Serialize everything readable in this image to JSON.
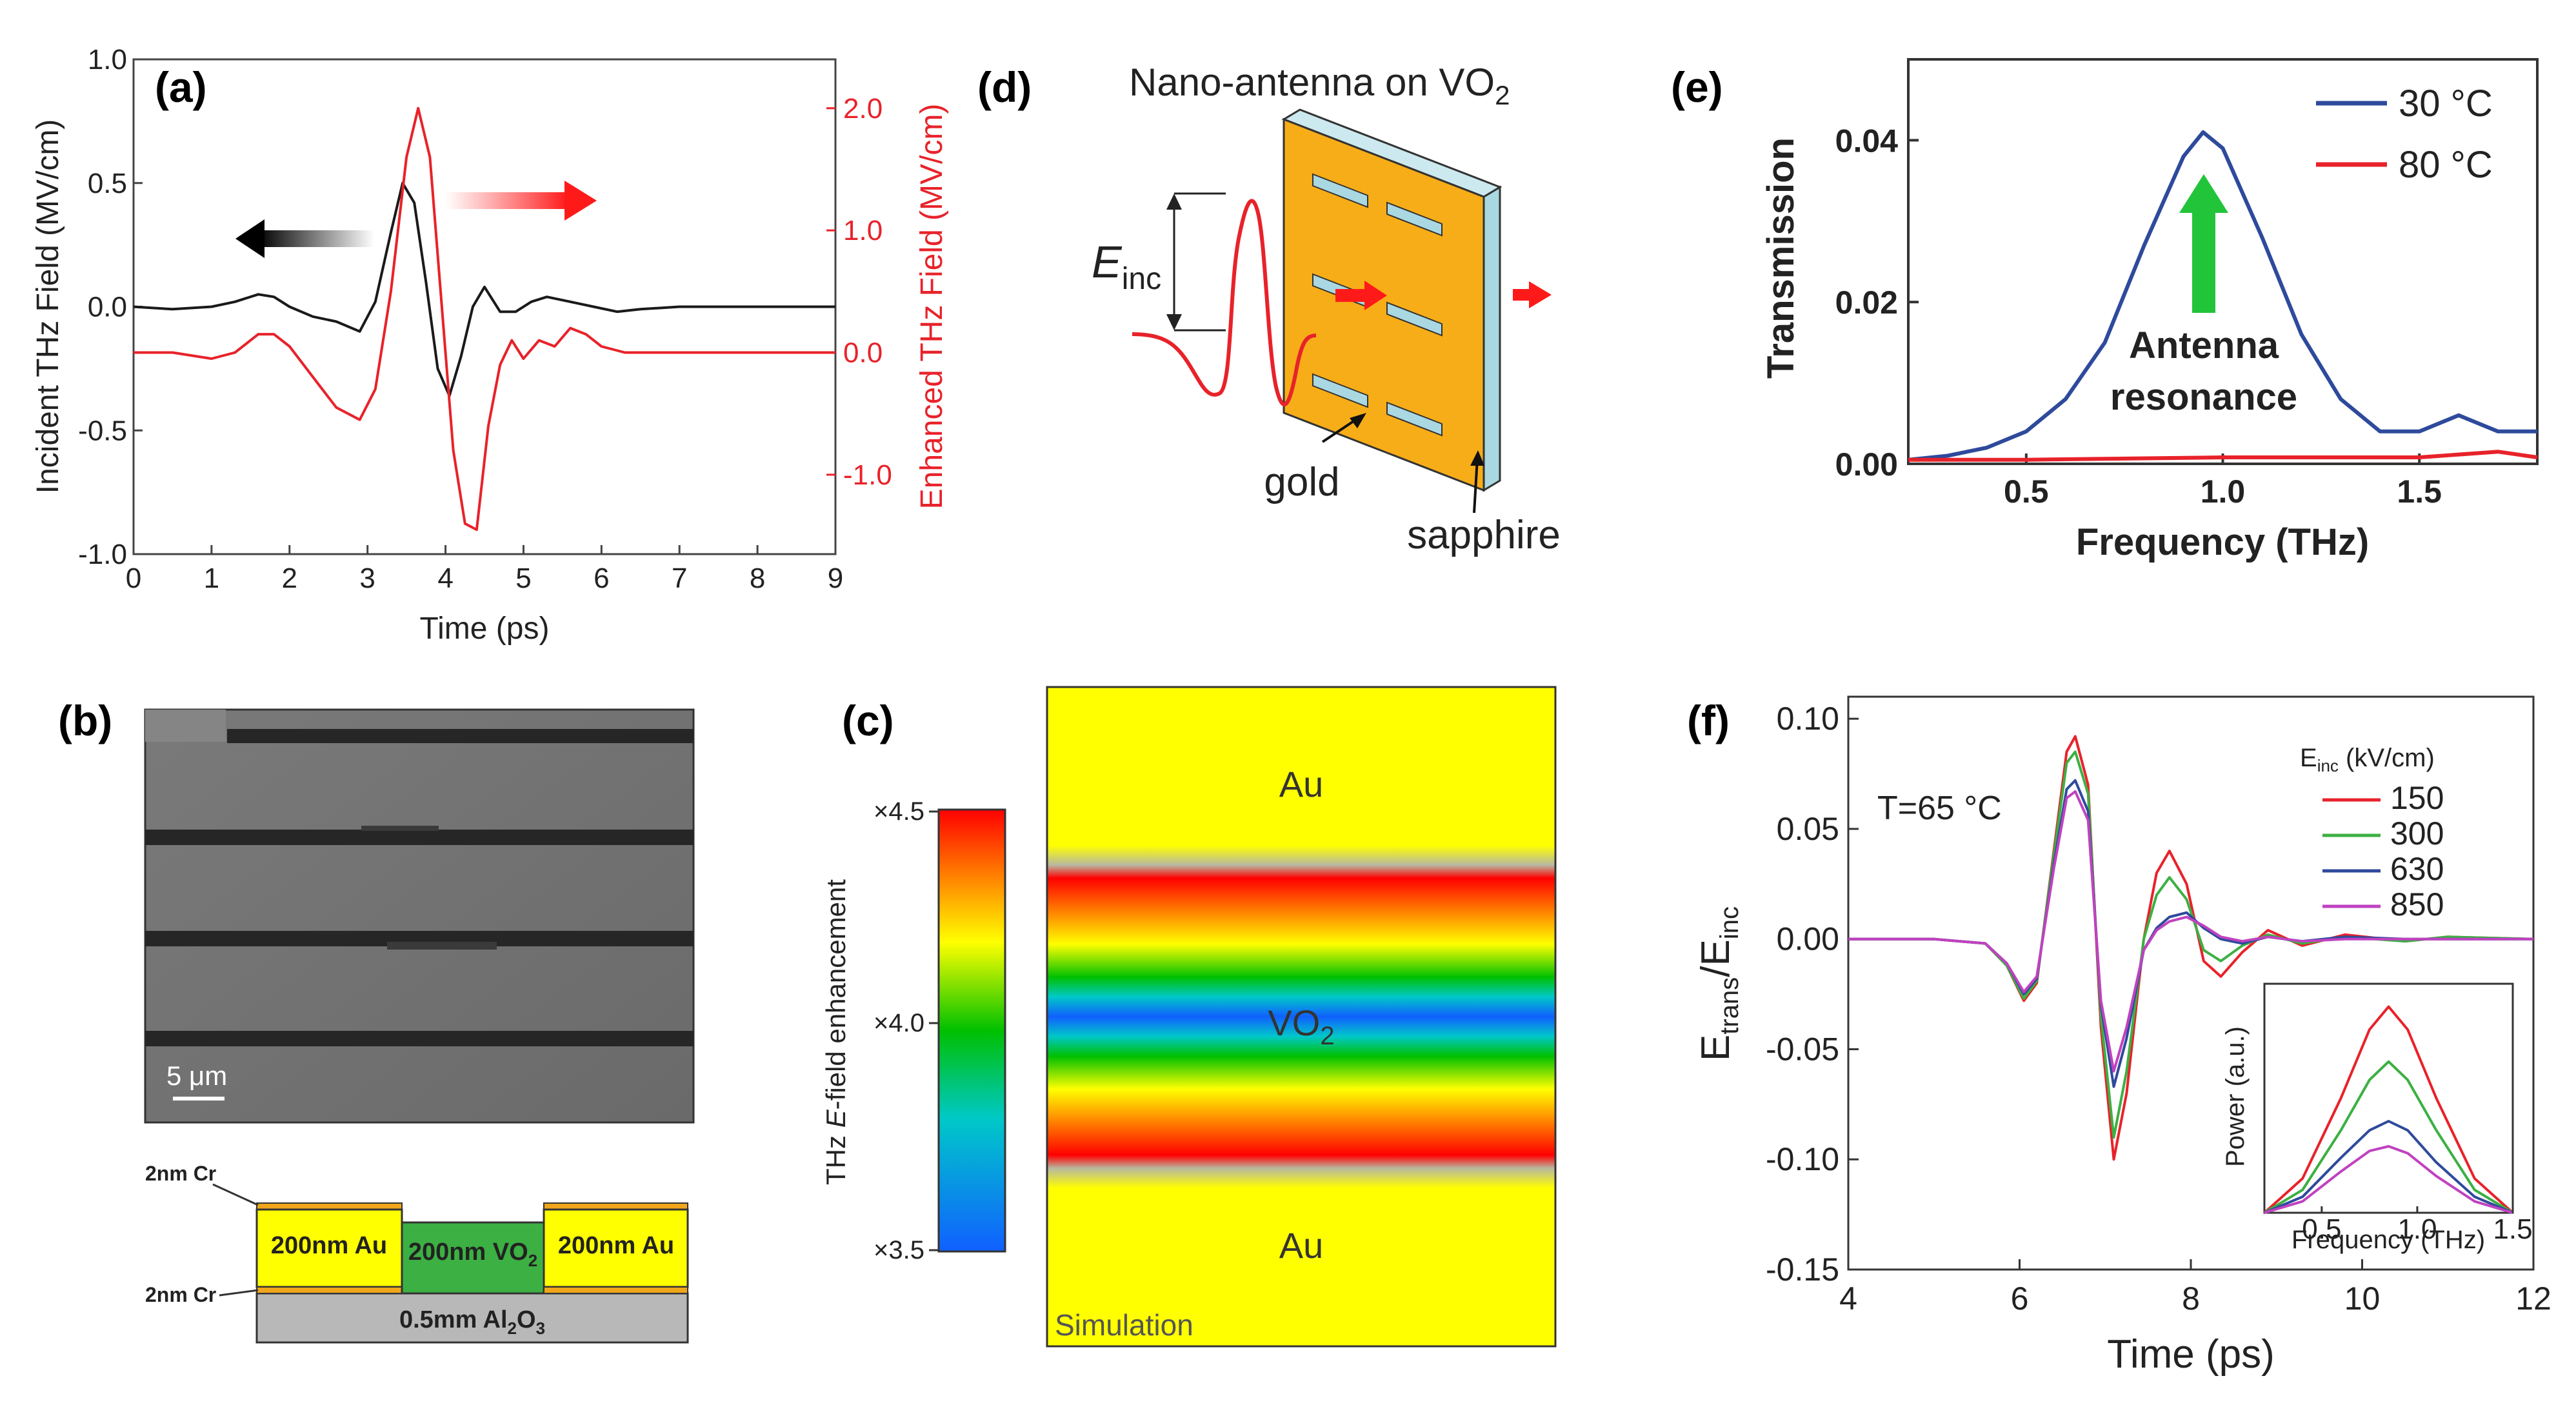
{
  "panels": {
    "a": {
      "label": "(a)",
      "chart_data": {
        "type": "line",
        "xlabel": "Time (ps)",
        "ylabel_left": "Incident THz Field (MV/cm)",
        "ylabel_right": "Enhanced THz Field (MV/cm)",
        "xlim": [
          0,
          9
        ],
        "ylim_left": [
          -1.0,
          1.0
        ],
        "ylim_right": [
          -1.65,
          2.4
        ],
        "xticks": [
          "0",
          "1",
          "2",
          "3",
          "4",
          "5",
          "6",
          "7",
          "8",
          "9"
        ],
        "yticks_left": [
          "1.0",
          "0.5",
          "0.0",
          "-0.5",
          "-1.0"
        ],
        "yticks_right": [
          "2.0",
          "1.0",
          "0.0",
          "-1.0"
        ],
        "series": [
          {
            "name": "Incident",
            "axis": "left",
            "color": "#1a1a1a",
            "x": [
              0,
              0.5,
              1.0,
              1.3,
              1.6,
              1.8,
              2.0,
              2.3,
              2.6,
              2.9,
              3.1,
              3.3,
              3.45,
              3.6,
              3.75,
              3.9,
              4.05,
              4.2,
              4.35,
              4.5,
              4.7,
              4.9,
              5.1,
              5.3,
              5.6,
              5.9,
              6.2,
              6.5,
              7,
              7.5,
              8,
              8.5,
              9
            ],
            "y": [
              0.0,
              -0.01,
              0.0,
              0.02,
              0.05,
              0.04,
              0.0,
              -0.04,
              -0.06,
              -0.1,
              0.02,
              0.3,
              0.5,
              0.42,
              0.1,
              -0.25,
              -0.36,
              -0.2,
              0.0,
              0.08,
              -0.02,
              -0.02,
              0.02,
              0.04,
              0.02,
              0.0,
              -0.02,
              -0.01,
              0.0,
              0.0,
              0.0,
              0.0,
              0.0
            ]
          },
          {
            "name": "Enhanced",
            "axis": "right",
            "color": "#e8222a",
            "x": [
              0,
              0.5,
              1.0,
              1.3,
              1.6,
              1.8,
              2.0,
              2.3,
              2.6,
              2.9,
              3.1,
              3.3,
              3.5,
              3.65,
              3.8,
              3.95,
              4.1,
              4.25,
              4.4,
              4.55,
              4.7,
              4.85,
              5.0,
              5.2,
              5.4,
              5.6,
              5.8,
              6.0,
              6.3,
              6.6,
              7,
              7.5,
              8,
              8.5,
              9
            ],
            "y": [
              0.0,
              0.0,
              -0.05,
              0.0,
              0.15,
              0.15,
              0.05,
              -0.2,
              -0.45,
              -0.55,
              -0.3,
              0.5,
              1.6,
              2.0,
              1.6,
              0.4,
              -0.8,
              -1.4,
              -1.45,
              -0.6,
              -0.1,
              0.1,
              -0.05,
              0.1,
              0.05,
              0.2,
              0.15,
              0.05,
              0.0,
              0.0,
              0.0,
              0.0,
              0.0,
              0.0,
              0.0
            ]
          }
        ]
      }
    },
    "d": {
      "label": "(d)",
      "title_main": "Nano-antenna on VO",
      "title_sub": "2",
      "e_label": "E",
      "e_sub": "inc",
      "gold_label": "gold",
      "sapphire_label": "sapphire"
    },
    "e": {
      "label": "(e)",
      "annotation_line1": "Antenna",
      "annotation_line2": "resonance",
      "chart_data": {
        "type": "line",
        "xlabel": "Frequency (THz)",
        "ylabel": "Transmission",
        "xlim": [
          0.2,
          1.8
        ],
        "ylim": [
          0.0,
          0.05
        ],
        "xticks": [
          "0.5",
          "1.0",
          "1.5"
        ],
        "yticks": [
          "0.04",
          "0.02",
          "0.00"
        ],
        "legend": "top-right",
        "series": [
          {
            "name": "30 °C",
            "color": "#2e4a9c",
            "x": [
              0.2,
              0.3,
              0.4,
              0.5,
              0.6,
              0.7,
              0.8,
              0.9,
              0.95,
              1.0,
              1.1,
              1.2,
              1.3,
              1.4,
              1.5,
              1.6,
              1.7,
              1.8
            ],
            "y": [
              0.0005,
              0.001,
              0.002,
              0.004,
              0.008,
              0.015,
              0.027,
              0.038,
              0.041,
              0.039,
              0.028,
              0.016,
              0.008,
              0.004,
              0.004,
              0.006,
              0.004,
              0.004
            ]
          },
          {
            "name": "80 °C",
            "color": "#e8222a",
            "x": [
              0.2,
              0.5,
              1.0,
              1.5,
              1.7,
              1.8
            ],
            "y": [
              0.0005,
              0.0005,
              0.0008,
              0.0008,
              0.0015,
              0.0008
            ]
          }
        ]
      }
    },
    "b": {
      "label": "(b)",
      "scale_bar": "5 μm",
      "layers": {
        "cr_top": "2nm Cr",
        "cr_bottom": "2nm Cr",
        "au_left": "200nm Au",
        "vo2_main": "200nm VO",
        "vo2_sub": "2",
        "au_right": "200nm Au",
        "substrate_main": "0.5mm Al",
        "substrate_sub": "2",
        "substrate_o": "O",
        "substrate_sub2": "3"
      }
    },
    "c": {
      "label": "(c)",
      "colorbar_label_pre": "THz ",
      "colorbar_label_italic": "E",
      "colorbar_label_post": "-field enhancement",
      "colorbar_ticks": [
        "×4.5",
        "×4.0",
        "×3.5"
      ],
      "au_top": "Au",
      "vo2_main": "VO",
      "vo2_sub": "2",
      "au_bottom": "Au",
      "simulation": "Simulation"
    },
    "f": {
      "label": "(f)",
      "temperature_text": "T=65 °C",
      "legend_title": "E",
      "legend_title_sub": "inc",
      "legend_title_post": " (kV/cm)",
      "ylabel_main": "E",
      "ylabel_sub1": "trans",
      "ylabel_slash": "/E",
      "ylabel_sub2": "inc",
      "chart_data": {
        "type": "line",
        "xlabel": "Time (ps)",
        "xlim": [
          4,
          12
        ],
        "ylim": [
          -0.15,
          0.11
        ],
        "xticks": [
          "4",
          "6",
          "8",
          "10",
          "12"
        ],
        "yticks": [
          "0.10",
          "0.05",
          "0.00",
          "-0.05",
          "-0.10",
          "-0.15"
        ],
        "series": [
          {
            "name": "150",
            "color": "#e8222a",
            "x": [
              4,
              5,
              5.6,
              5.85,
              6.05,
              6.2,
              6.4,
              6.55,
              6.65,
              6.8,
              6.95,
              7.1,
              7.25,
              7.45,
              7.6,
              7.75,
              7.95,
              8.15,
              8.35,
              8.6,
              8.9,
              9.3,
              9.8,
              10.5,
              11,
              12
            ],
            "y": [
              0,
              0,
              -0.002,
              -0.012,
              -0.028,
              -0.02,
              0.04,
              0.085,
              0.092,
              0.07,
              -0.04,
              -0.1,
              -0.07,
              0.0,
              0.03,
              0.04,
              0.025,
              -0.01,
              -0.017,
              -0.006,
              0.004,
              -0.003,
              0.002,
              -0.001,
              0.001,
              0
            ]
          },
          {
            "name": "300",
            "color": "#3cb043",
            "x": [
              4,
              5,
              5.6,
              5.85,
              6.05,
              6.2,
              6.4,
              6.55,
              6.65,
              6.8,
              6.95,
              7.1,
              7.25,
              7.45,
              7.6,
              7.75,
              7.95,
              8.15,
              8.35,
              8.6,
              8.9,
              9.3,
              9.8,
              10.5,
              11,
              12
            ],
            "y": [
              0,
              0,
              -0.002,
              -0.012,
              -0.027,
              -0.019,
              0.038,
              0.08,
              0.085,
              0.066,
              -0.035,
              -0.09,
              -0.06,
              0.0,
              0.02,
              0.028,
              0.018,
              -0.005,
              -0.01,
              -0.003,
              0.002,
              -0.002,
              0.001,
              -0.001,
              0.001,
              0
            ]
          },
          {
            "name": "630",
            "color": "#2e4a9c",
            "x": [
              4,
              5,
              5.6,
              5.85,
              6.05,
              6.2,
              6.4,
              6.55,
              6.65,
              6.8,
              6.95,
              7.1,
              7.25,
              7.45,
              7.6,
              7.75,
              7.95,
              8.15,
              8.35,
              8.6,
              8.9,
              9.3,
              9.8,
              10.5,
              11,
              12
            ],
            "y": [
              0,
              0,
              -0.002,
              -0.011,
              -0.025,
              -0.018,
              0.034,
              0.068,
              0.072,
              0.058,
              -0.03,
              -0.067,
              -0.045,
              -0.005,
              0.005,
              0.01,
              0.012,
              0.005,
              0.0,
              -0.002,
              0.001,
              -0.001,
              0.001,
              0,
              0,
              0
            ]
          },
          {
            "name": "850",
            "color": "#c042c0",
            "x": [
              4,
              5,
              5.6,
              5.85,
              6.05,
              6.2,
              6.4,
              6.55,
              6.65,
              6.8,
              6.95,
              7.1,
              7.25,
              7.45,
              7.6,
              7.75,
              7.95,
              8.15,
              8.35,
              8.6,
              8.9,
              9.3,
              9.8,
              10.5,
              11,
              12
            ],
            "y": [
              0,
              0,
              -0.002,
              -0.011,
              -0.024,
              -0.017,
              0.032,
              0.064,
              0.067,
              0.054,
              -0.028,
              -0.06,
              -0.04,
              -0.005,
              0.004,
              0.008,
              0.01,
              0.006,
              0.001,
              -0.001,
              0.001,
              -0.001,
              0,
              0,
              0,
              0
            ]
          }
        ],
        "inset": {
          "type": "line",
          "xlabel": "Frequency (THz)",
          "ylabel": "Power (a.u.)",
          "xlim": [
            0.2,
            1.5
          ],
          "ylim": [
            0,
            1.0
          ],
          "xticks": [
            "0.5",
            "1.0",
            "1.5"
          ],
          "series": [
            {
              "name": "150",
              "color": "#e8222a",
              "x": [
                0.2,
                0.4,
                0.6,
                0.75,
                0.85,
                0.95,
                1.1,
                1.3,
                1.5
              ],
              "y": [
                0.0,
                0.15,
                0.5,
                0.8,
                0.9,
                0.8,
                0.5,
                0.15,
                0.0
              ]
            },
            {
              "name": "300",
              "color": "#3cb043",
              "x": [
                0.2,
                0.4,
                0.6,
                0.75,
                0.85,
                0.95,
                1.1,
                1.3,
                1.5
              ],
              "y": [
                0.0,
                0.1,
                0.36,
                0.58,
                0.66,
                0.58,
                0.36,
                0.1,
                0.0
              ]
            },
            {
              "name": "630",
              "color": "#2e4a9c",
              "x": [
                0.2,
                0.4,
                0.6,
                0.75,
                0.85,
                0.95,
                1.1,
                1.3,
                1.5
              ],
              "y": [
                0.0,
                0.07,
                0.24,
                0.36,
                0.4,
                0.36,
                0.22,
                0.07,
                0.0
              ]
            },
            {
              "name": "850",
              "color": "#c042c0",
              "x": [
                0.2,
                0.4,
                0.6,
                0.75,
                0.85,
                0.95,
                1.1,
                1.3,
                1.5
              ],
              "y": [
                0.0,
                0.05,
                0.18,
                0.27,
                0.29,
                0.26,
                0.16,
                0.05,
                0.0
              ]
            }
          ]
        }
      }
    }
  }
}
